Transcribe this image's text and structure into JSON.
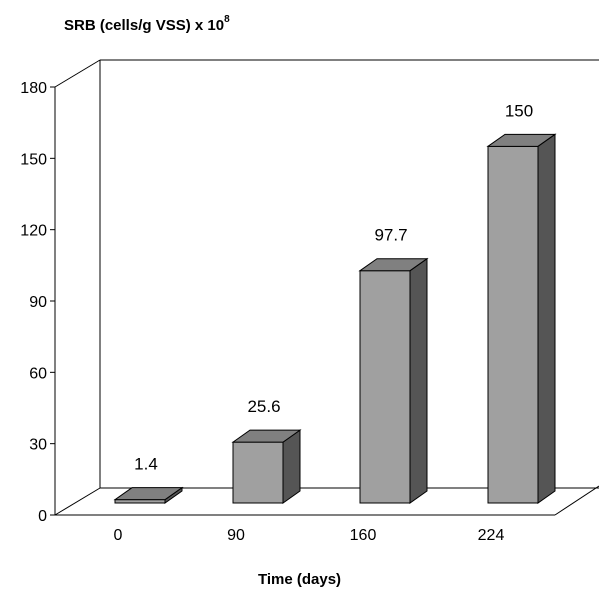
{
  "chart_data": {
    "type": "bar",
    "categories": [
      "0",
      "90",
      "160",
      "224"
    ],
    "values": [
      1.4,
      25.6,
      97.7,
      150
    ],
    "data_labels": [
      "1.4",
      "25.6",
      "97.7",
      "150"
    ],
    "ylabel_prefix": "SRB (cells/g VSS) x 10",
    "ylabel_exponent": "8",
    "xlabel": "Time (days)",
    "ylim": [
      0,
      180
    ],
    "yticks": [
      "0",
      "30",
      "60",
      "90",
      "120",
      "150",
      "180"
    ],
    "grid": false,
    "style": "3d",
    "colors": {
      "bar_front": "#a0a0a0",
      "bar_top": "#808080",
      "bar_side": "#555555",
      "outline": "#000000"
    }
  }
}
